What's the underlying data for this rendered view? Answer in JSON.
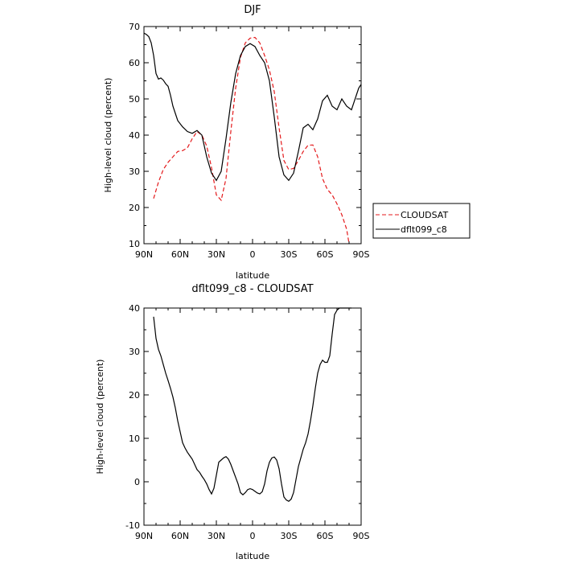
{
  "chart_data": [
    {
      "type": "line",
      "title": "DJF",
      "xlabel": "latitude",
      "ylabel": "High-level cloud (percent)",
      "xlim": [
        -90,
        90
      ],
      "ylim": [
        10,
        70
      ],
      "x_ticks": [
        -90,
        -60,
        -30,
        0,
        30,
        60,
        90
      ],
      "x_tick_labels": [
        "90N",
        "60N",
        "30N",
        "0",
        "30S",
        "60S",
        "90S"
      ],
      "y_ticks": [
        10,
        20,
        30,
        40,
        50,
        60,
        70
      ],
      "y_tick_labels": [
        "10",
        "20",
        "30",
        "40",
        "50",
        "60",
        "70"
      ],
      "legend_position": "right",
      "series": [
        {
          "name": "CLOUDSAT",
          "color": "#e41a1c",
          "dash": "dashed",
          "x": [
            -82,
            -78,
            -74,
            -70,
            -66,
            -62,
            -58,
            -54,
            -50,
            -46,
            -42,
            -38,
            -34,
            -30,
            -26,
            -22,
            -18,
            -14,
            -10,
            -6,
            -2,
            2,
            6,
            10,
            14,
            18,
            22,
            26,
            30,
            34,
            38,
            42,
            46,
            50,
            54,
            58,
            62,
            66,
            70,
            74,
            78,
            80
          ],
          "values": [
            22.5,
            27,
            30.5,
            32.5,
            34,
            35.5,
            35.7,
            36.5,
            39,
            41,
            40,
            37,
            31,
            23.5,
            22,
            28,
            41,
            53,
            61.5,
            65.5,
            66.8,
            67,
            65.5,
            62,
            58,
            52,
            42,
            33,
            30.5,
            30.8,
            33,
            35.5,
            37.2,
            37.3,
            34,
            28,
            25,
            23.5,
            21,
            18,
            14,
            10
          ]
        },
        {
          "name": "dflt099_c8",
          "color": "#000000",
          "dash": "solid",
          "x": [
            -90,
            -88,
            -86,
            -84,
            -82,
            -80,
            -78,
            -76,
            -74,
            -72,
            -70,
            -68,
            -66,
            -64,
            -62,
            -58,
            -54,
            -50,
            -46,
            -42,
            -38,
            -34,
            -30,
            -26,
            -22,
            -18,
            -14,
            -10,
            -6,
            -2,
            2,
            6,
            10,
            14,
            18,
            22,
            26,
            30,
            34,
            38,
            42,
            46,
            50,
            54,
            58,
            62,
            66,
            70,
            74,
            78,
            82,
            86,
            88,
            90
          ],
          "values": [
            68.2,
            67.8,
            67.2,
            65.5,
            62,
            57,
            55.5,
            55.8,
            55.2,
            54.2,
            53.5,
            51,
            48,
            46,
            44,
            42.3,
            41,
            40.5,
            41.3,
            40,
            34,
            29.5,
            27.5,
            30,
            39,
            49,
            57,
            62,
            64.5,
            65.3,
            64.5,
            62,
            60,
            55,
            45,
            34,
            29,
            27.5,
            29.5,
            35.5,
            42,
            43,
            41.5,
            44.5,
            49.5,
            51,
            48,
            47,
            50,
            48,
            47,
            51,
            53,
            54
          ]
        }
      ]
    },
    {
      "type": "line",
      "title": "dflt099_c8 - CLOUDSAT",
      "xlabel": "latitude",
      "ylabel": "High-level cloud (percent)",
      "xlim": [
        -90,
        90
      ],
      "ylim": [
        -10,
        40
      ],
      "x_ticks": [
        -90,
        -60,
        -30,
        0,
        30,
        60,
        90
      ],
      "x_tick_labels": [
        "90N",
        "60N",
        "30N",
        "0",
        "30S",
        "60S",
        "90S"
      ],
      "y_ticks": [
        -10,
        0,
        10,
        20,
        30,
        40
      ],
      "y_tick_labels": [
        "-10",
        "0",
        "10",
        "20",
        "30",
        "40"
      ],
      "series": [
        {
          "color": "#000000",
          "dash": "solid",
          "x": [
            -82,
            -80,
            -78,
            -76,
            -74,
            -72,
            -70,
            -68,
            -66,
            -64,
            -62,
            -60,
            -58,
            -56,
            -54,
            -52,
            -50,
            -48,
            -46,
            -44,
            -42,
            -40,
            -38,
            -36,
            -34,
            -32,
            -30,
            -28,
            -26,
            -24,
            -22,
            -20,
            -18,
            -16,
            -14,
            -12,
            -10,
            -8,
            -6,
            -4,
            -2,
            0,
            2,
            4,
            6,
            8,
            10,
            12,
            14,
            16,
            18,
            20,
            22,
            24,
            26,
            28,
            30,
            32,
            34,
            36,
            38,
            40,
            42,
            44,
            46,
            48,
            50,
            52,
            54,
            56,
            58,
            60,
            62,
            64,
            66,
            68,
            70,
            72,
            74,
            76,
            78,
            80,
            82
          ],
          "values": [
            38,
            33,
            30.5,
            29,
            27,
            25,
            23.3,
            21.5,
            19.5,
            17,
            14,
            11.5,
            9,
            7.8,
            6.8,
            6,
            5.2,
            4,
            2.8,
            2.2,
            1.3,
            0.5,
            -0.5,
            -1.8,
            -2.8,
            -1.5,
            1.5,
            4.5,
            5,
            5.5,
            5.8,
            5.2,
            4,
            2.5,
            1,
            -0.5,
            -2.5,
            -3,
            -2.5,
            -1.8,
            -1.6,
            -1.8,
            -2.2,
            -2.6,
            -2.8,
            -2.3,
            -0.5,
            2.5,
            4.5,
            5.5,
            5.7,
            5,
            3,
            -0.5,
            -3.5,
            -4.2,
            -4.5,
            -4,
            -2.5,
            0.5,
            3.5,
            5.5,
            7.5,
            9,
            11,
            14,
            17.5,
            21.5,
            25,
            27,
            28,
            27.5,
            27.5,
            29,
            34,
            38.5,
            39.5,
            40,
            40,
            40,
            40,
            40,
            40
          ]
        }
      ]
    }
  ]
}
